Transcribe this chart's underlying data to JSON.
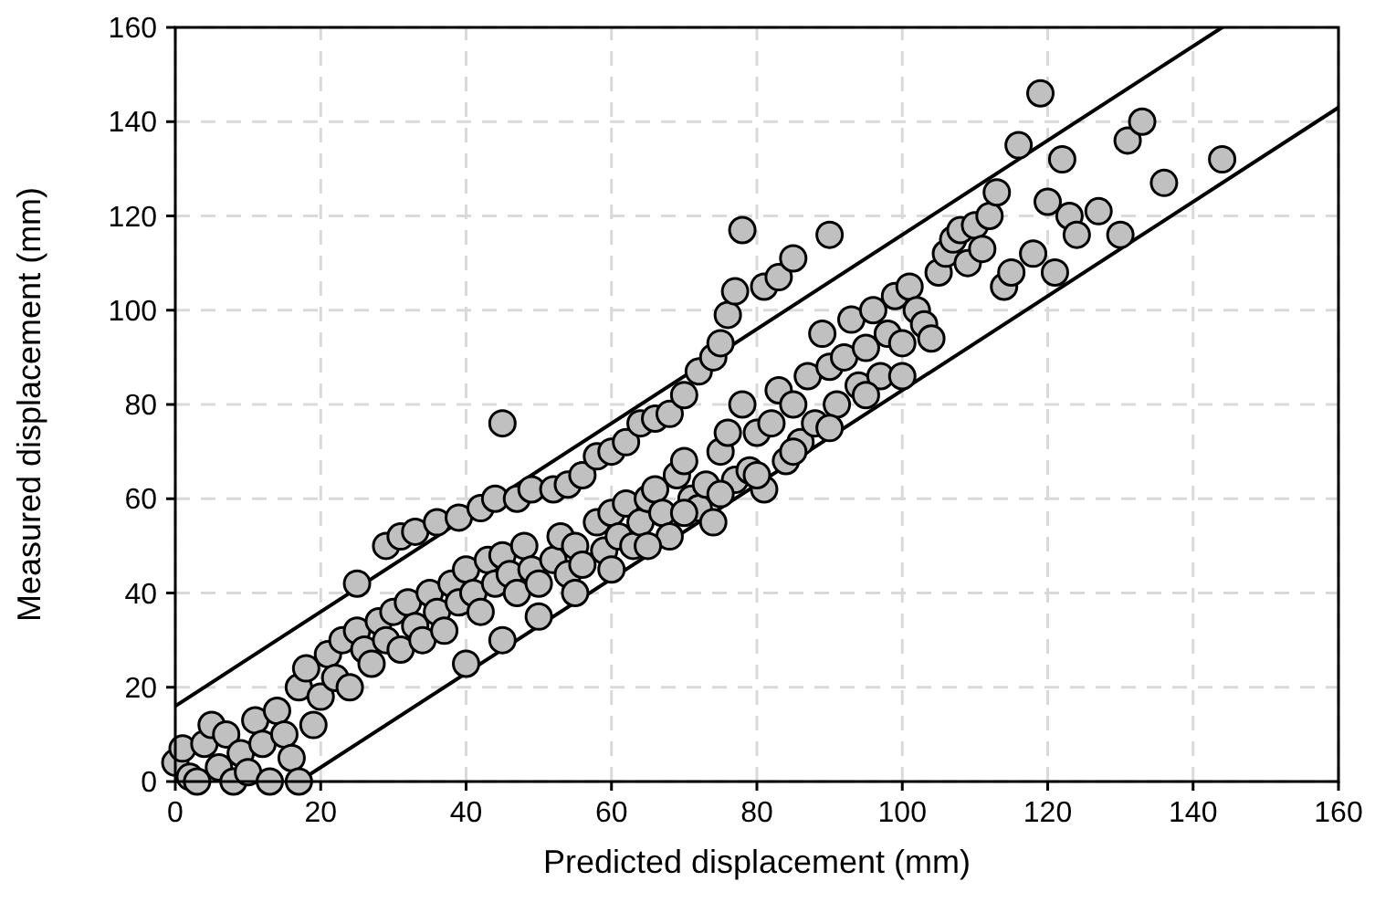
{
  "chart_data": {
    "type": "scatter",
    "xlabel": "Predicted displacement (mm)",
    "ylabel": "Measured displacement (mm)",
    "xlim": [
      0,
      160
    ],
    "ylim": [
      0,
      160
    ],
    "xticks": [
      0,
      20,
      40,
      60,
      80,
      100,
      120,
      140,
      160
    ],
    "yticks": [
      0,
      20,
      40,
      60,
      80,
      100,
      120,
      140,
      160
    ],
    "grid": true,
    "series": [
      {
        "type": "line",
        "color": "#000000",
        "x": [
          0,
          144
        ],
        "values": [
          16,
          160
        ],
        "line_style": "solid"
      },
      {
        "type": "line",
        "color": "#000000",
        "x": [
          17,
          160
        ],
        "values": [
          0,
          143
        ],
        "line_style": "solid"
      },
      {
        "color": "#c0c0c0",
        "marker": "circle",
        "x": [
          29,
          31,
          33,
          36,
          39,
          42,
          44,
          45,
          47,
          49,
          52,
          54,
          56,
          58,
          60,
          62,
          64,
          66,
          68,
          70,
          72,
          74,
          75,
          76,
          77,
          78,
          81,
          83,
          85,
          90,
          0,
          1,
          2,
          3,
          4,
          5,
          6,
          7,
          8,
          9,
          10,
          11,
          12,
          13,
          14,
          15,
          16,
          17,
          17,
          18,
          19,
          20,
          21,
          22,
          23,
          24,
          25,
          25,
          26,
          27,
          28,
          29,
          30,
          31,
          32,
          33,
          34,
          35,
          36,
          37,
          38,
          39,
          40,
          41,
          42,
          43,
          44,
          45,
          46,
          47,
          48,
          49,
          50,
          52,
          53,
          54,
          55,
          56,
          58,
          59,
          60,
          61,
          62,
          63,
          64,
          65,
          66,
          67,
          68,
          69,
          70,
          71,
          72,
          73,
          74,
          75,
          76,
          77,
          78,
          79,
          80,
          81,
          82,
          83,
          84,
          85,
          86,
          87,
          88,
          89,
          90,
          91,
          92,
          93,
          94,
          95,
          96,
          97,
          98,
          99,
          100,
          101,
          102,
          103,
          104,
          105,
          106,
          107,
          108,
          109,
          110,
          111,
          112,
          113,
          114,
          115,
          116,
          118,
          119,
          120,
          121,
          122,
          123,
          124,
          127,
          130,
          131,
          133,
          136,
          144,
          40,
          45,
          50,
          55,
          60,
          65,
          70,
          75,
          80,
          85,
          90,
          95,
          100
        ],
        "values": [
          50,
          52,
          53,
          55,
          56,
          58,
          60,
          76,
          60,
          62,
          62,
          63,
          65,
          69,
          70,
          72,
          76,
          77,
          78,
          82,
          87,
          90,
          93,
          99,
          104,
          117,
          105,
          107,
          111,
          116,
          4,
          7,
          1,
          0,
          8,
          12,
          3,
          10,
          0,
          6,
          2,
          13,
          8,
          0,
          15,
          10,
          5,
          0,
          20,
          24,
          12,
          18,
          27,
          22,
          30,
          20,
          32,
          42,
          28,
          25,
          34,
          30,
          36,
          28,
          38,
          33,
          30,
          40,
          36,
          32,
          42,
          38,
          45,
          40,
          36,
          47,
          42,
          48,
          44,
          40,
          50,
          45,
          42,
          47,
          52,
          44,
          50,
          46,
          55,
          49,
          57,
          52,
          59,
          50,
          55,
          60,
          62,
          57,
          52,
          65,
          68,
          60,
          58,
          63,
          55,
          70,
          74,
          64,
          80,
          66,
          74,
          62,
          76,
          83,
          68,
          80,
          72,
          86,
          76,
          95,
          88,
          80,
          90,
          98,
          84,
          92,
          100,
          86,
          95,
          103,
          93,
          105,
          100,
          97,
          94,
          108,
          112,
          115,
          117,
          110,
          118,
          113,
          120,
          125,
          105,
          108,
          135,
          112,
          146,
          123,
          108,
          132,
          120,
          116,
          121,
          116,
          136,
          140,
          127,
          132,
          25,
          30,
          35,
          40,
          45,
          50,
          57,
          61,
          65,
          70,
          75,
          82,
          86
        ]
      }
    ]
  }
}
